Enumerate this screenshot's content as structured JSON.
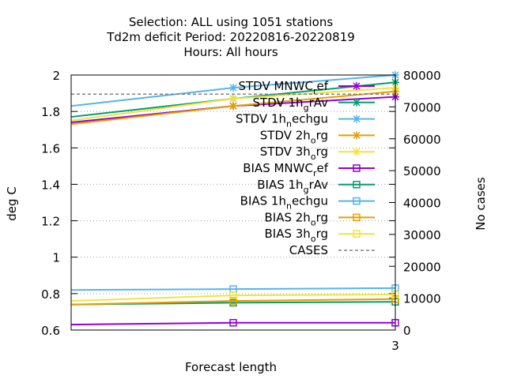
{
  "chart_data": {
    "type": "line",
    "title_lines": [
      "Selection: ALL using  1051 stations",
      "Td2m deficit   Period: 20220816-20220819",
      "Hours:  All hours"
    ],
    "xlabel": "Forecast length",
    "ylabel": "deg C",
    "y2label": "No cases",
    "x_ticks": [
      "3"
    ],
    "xlim": [
      0,
      3
    ],
    "ylim": [
      0.6,
      2.0
    ],
    "y_ticks": [
      "0.6",
      "0.8",
      "1",
      "1.2",
      "1.4",
      "1.6",
      "1.8",
      "2"
    ],
    "y2lim": [
      0,
      80000
    ],
    "y2_ticks": [
      "0",
      "10000",
      "20000",
      "30000",
      "40000",
      "50000",
      "60000",
      "70000",
      "80000"
    ],
    "grid": "horizontal dotted",
    "legend_position": "top-right",
    "series": [
      {
        "name": "STDV MNWC_ref",
        "legend": [
          "STDV MNWC",
          "r",
          "ef"
        ],
        "color": "#9400d3",
        "marker": "x",
        "dash": false,
        "axis": "y",
        "x": [
          0,
          1.5,
          3
        ],
        "values": [
          1.74,
          1.83,
          1.88
        ]
      },
      {
        "name": "STDV 1h_grAv",
        "legend": [
          "STDV 1h",
          "g",
          "rAv"
        ],
        "color": "#009e73",
        "marker": "x",
        "dash": false,
        "axis": "y",
        "x": [
          0,
          1.5,
          3
        ],
        "values": [
          1.77,
          1.87,
          1.96
        ]
      },
      {
        "name": "STDV 1h_nechgu",
        "legend": [
          "STDV 1h",
          "n",
          "echgu"
        ],
        "color": "#56b4e9",
        "marker": "x",
        "dash": false,
        "axis": "y",
        "x": [
          0,
          1.5,
          3
        ],
        "values": [
          1.83,
          1.93,
          2.0
        ]
      },
      {
        "name": "STDV 2h_org",
        "legend": [
          "STDV 2h",
          "o",
          "rg"
        ],
        "color": "#e69f00",
        "marker": "x",
        "dash": false,
        "axis": "y",
        "x": [
          0,
          1.5,
          3
        ],
        "values": [
          1.73,
          1.83,
          1.91
        ]
      },
      {
        "name": "STDV 3h_org",
        "legend": [
          "STDV 3h",
          "o",
          "rg"
        ],
        "color": "#f0e442",
        "marker": "x",
        "dash": false,
        "axis": "y",
        "x": [
          0,
          1.5,
          3
        ],
        "values": [
          1.75,
          1.87,
          1.93
        ]
      },
      {
        "name": "BIAS MNWC_ref",
        "legend": [
          "BIAS MNWC",
          "r",
          "ef"
        ],
        "color": "#9400d3",
        "marker": "square",
        "dash": false,
        "axis": "y",
        "x": [
          0,
          1.5,
          3
        ],
        "values": [
          0.63,
          0.64,
          0.64
        ]
      },
      {
        "name": "BIAS 1h_grAv",
        "legend": [
          "BIAS 1h",
          "g",
          "rAv"
        ],
        "color": "#009e73",
        "marker": "square",
        "dash": false,
        "axis": "y",
        "x": [
          0,
          1.5,
          3
        ],
        "values": [
          0.74,
          0.75,
          0.755
        ]
      },
      {
        "name": "BIAS 1h_nechgu",
        "legend": [
          "BIAS 1h",
          "n",
          "echgu"
        ],
        "color": "#56b4e9",
        "marker": "square",
        "dash": false,
        "axis": "y",
        "x": [
          0,
          1.5,
          3
        ],
        "values": [
          0.82,
          0.825,
          0.83
        ]
      },
      {
        "name": "BIAS 2h_org",
        "legend": [
          "BIAS 2h",
          "o",
          "rg"
        ],
        "color": "#e69f00",
        "marker": "square",
        "dash": false,
        "axis": "y",
        "x": [
          0,
          1.5,
          3
        ],
        "values": [
          0.74,
          0.76,
          0.77
        ]
      },
      {
        "name": "BIAS 3h_org",
        "legend": [
          "BIAS 3h",
          "o",
          "rg"
        ],
        "color": "#f0e442",
        "marker": "square",
        "dash": false,
        "axis": "y",
        "x": [
          0,
          1.5,
          3
        ],
        "values": [
          0.76,
          0.79,
          0.795
        ]
      },
      {
        "name": "CASES",
        "legend": [
          "CASES"
        ],
        "color": "#808080",
        "marker": "none",
        "dash": true,
        "axis": "y2",
        "x": [
          0,
          3
        ],
        "values": [
          74000,
          74000
        ]
      }
    ]
  }
}
